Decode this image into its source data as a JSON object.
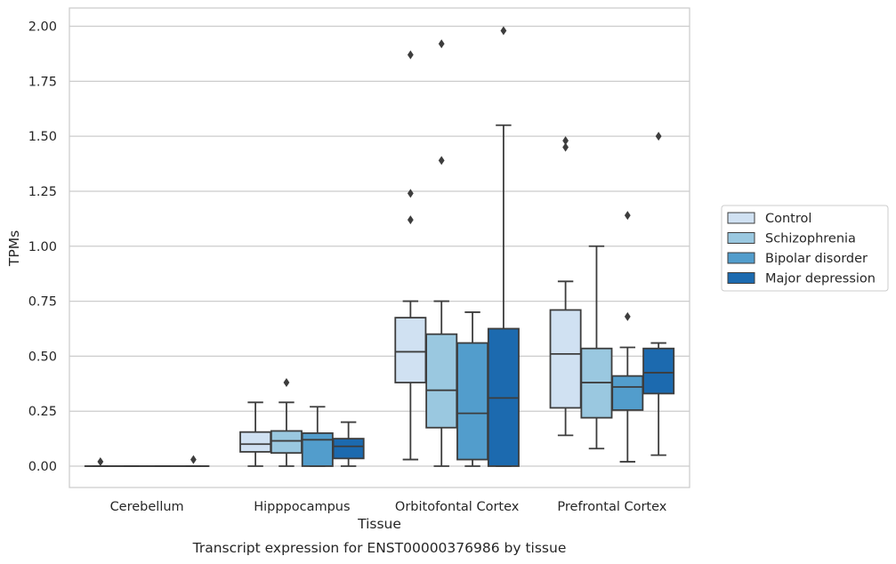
{
  "caption": "Transcript expression for ENST00000376986 by tissue",
  "chart_data": {
    "type": "box",
    "title": "",
    "xlabel": "Tissue",
    "ylabel": "TPMs",
    "ylim": [
      -0.1,
      2.08
    ],
    "yticks": [
      0.0,
      0.25,
      0.5,
      0.75,
      1.0,
      1.25,
      1.5,
      1.75,
      2.0
    ],
    "ytick_labels": [
      "0.00",
      "0.25",
      "0.50",
      "0.75",
      "1.00",
      "1.25",
      "1.50",
      "1.75",
      "2.00"
    ],
    "grid": "horizontal",
    "legend_position": "right",
    "categories": [
      "Cerebellum",
      "Hipppocampus",
      "Orbitofontal Cortex",
      "Prefrontal Cortex"
    ],
    "series": [
      {
        "name": "Control",
        "color": "#d0e1f2",
        "boxes": [
          {
            "whislo": 0.0,
            "q1": 0.0,
            "med": 0.0,
            "q3": 0.0,
            "whishi": 0.0,
            "fliers": [
              0.02
            ]
          },
          {
            "whislo": 0.0,
            "q1": 0.065,
            "med": 0.1,
            "q3": 0.155,
            "whishi": 0.29,
            "fliers": []
          },
          {
            "whislo": 0.03,
            "q1": 0.38,
            "med": 0.52,
            "q3": 0.675,
            "whishi": 0.75,
            "fliers": [
              1.12,
              1.24,
              1.87
            ]
          },
          {
            "whislo": 0.14,
            "q1": 0.265,
            "med": 0.51,
            "q3": 0.71,
            "whishi": 0.84,
            "fliers": [
              1.45,
              1.48
            ]
          }
        ]
      },
      {
        "name": "Schizophrenia",
        "color": "#9ac8e0",
        "boxes": [
          {
            "whislo": 0.0,
            "q1": 0.0,
            "med": 0.0,
            "q3": 0.0,
            "whishi": 0.0,
            "fliers": []
          },
          {
            "whislo": 0.0,
            "q1": 0.06,
            "med": 0.115,
            "q3": 0.16,
            "whishi": 0.29,
            "fliers": [
              0.38
            ]
          },
          {
            "whislo": 0.0,
            "q1": 0.175,
            "med": 0.345,
            "q3": 0.6,
            "whishi": 0.75,
            "fliers": [
              1.39,
              1.92
            ]
          },
          {
            "whislo": 0.08,
            "q1": 0.22,
            "med": 0.38,
            "q3": 0.535,
            "whishi": 1.0,
            "fliers": []
          }
        ]
      },
      {
        "name": "Bipolar disorder",
        "color": "#529dcc",
        "boxes": [
          {
            "whislo": 0.0,
            "q1": 0.0,
            "med": 0.0,
            "q3": 0.0,
            "whishi": 0.0,
            "fliers": []
          },
          {
            "whislo": 0.0,
            "q1": 0.0,
            "med": 0.12,
            "q3": 0.15,
            "whishi": 0.27,
            "fliers": []
          },
          {
            "whislo": 0.0,
            "q1": 0.03,
            "med": 0.24,
            "q3": 0.56,
            "whishi": 0.7,
            "fliers": []
          },
          {
            "whislo": 0.02,
            "q1": 0.255,
            "med": 0.36,
            "q3": 0.41,
            "whishi": 0.54,
            "fliers": [
              0.68,
              1.14
            ]
          }
        ]
      },
      {
        "name": "Major depression",
        "color": "#1c6aaf",
        "boxes": [
          {
            "whislo": 0.0,
            "q1": 0.0,
            "med": 0.0,
            "q3": 0.0,
            "whishi": 0.0,
            "fliers": [
              0.03
            ]
          },
          {
            "whislo": 0.0,
            "q1": 0.035,
            "med": 0.09,
            "q3": 0.125,
            "whishi": 0.2,
            "fliers": []
          },
          {
            "whislo": 0.0,
            "q1": 0.0,
            "med": 0.31,
            "q3": 0.625,
            "whishi": 1.55,
            "fliers": [
              1.98
            ]
          },
          {
            "whislo": 0.05,
            "q1": 0.33,
            "med": 0.425,
            "q3": 0.535,
            "whishi": 0.56,
            "fliers": [
              1.5
            ]
          }
        ]
      }
    ]
  }
}
